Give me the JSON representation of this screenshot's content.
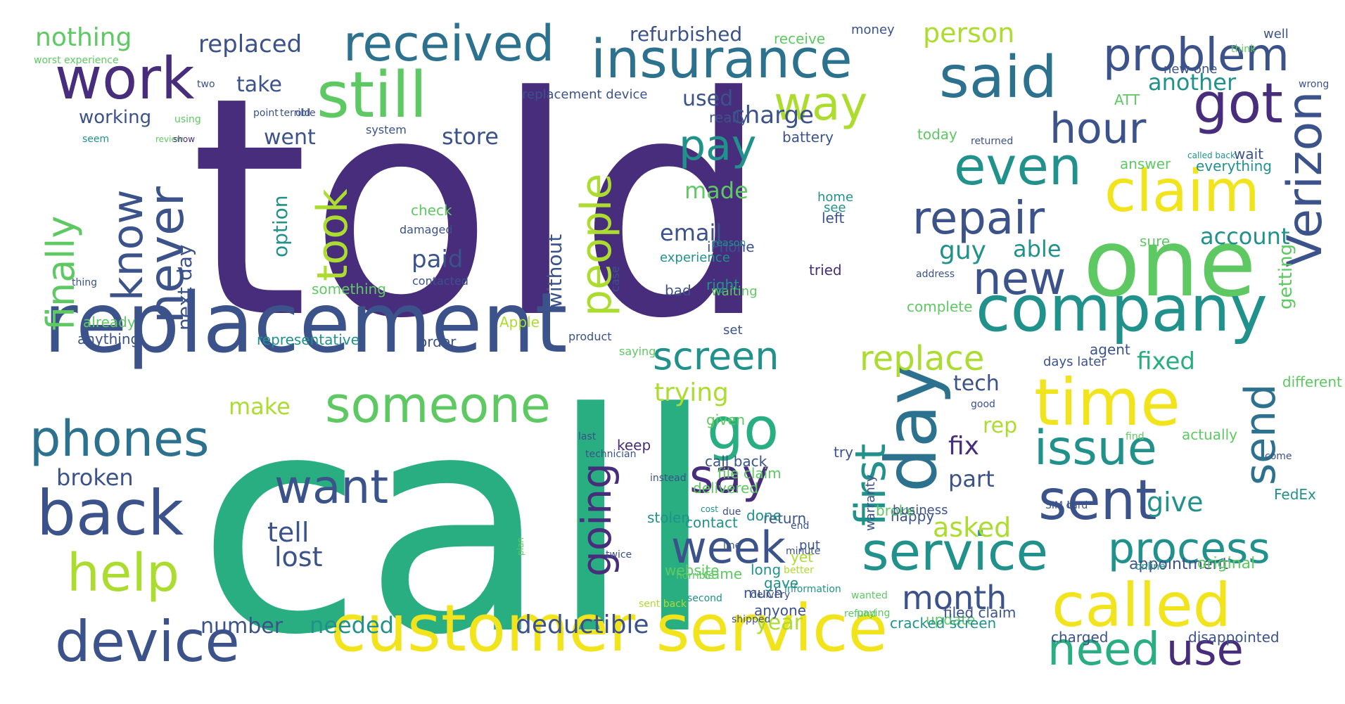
{
  "title": "",
  "palette": {
    "purple": "#472d7b",
    "indigo": "#3b528b",
    "blue": "#2c728e",
    "teal": "#21918c",
    "green": "#28ae80",
    "lime": "#5ec962",
    "yellowgreen": "#addc30",
    "yellow": "#f2e41c"
  },
  "words": [
    {
      "text": "told",
      "color": "purple"
    },
    {
      "text": "call",
      "color": "green"
    },
    {
      "text": "replacement",
      "color": "indigo"
    },
    {
      "text": "customer service",
      "color": "yellow"
    },
    {
      "text": "insurance",
      "color": "blue"
    },
    {
      "text": "received",
      "color": "blue"
    },
    {
      "text": "still",
      "color": "lime"
    },
    {
      "text": "work",
      "color": "purple"
    },
    {
      "text": "said",
      "color": "blue"
    },
    {
      "text": "problem",
      "color": "indigo"
    },
    {
      "text": "one",
      "color": "lime"
    },
    {
      "text": "company",
      "color": "teal"
    },
    {
      "text": "time",
      "color": "yellow"
    },
    {
      "text": "day",
      "color": "blue"
    },
    {
      "text": "claim",
      "color": "yellow"
    },
    {
      "text": "called",
      "color": "yellow"
    },
    {
      "text": "device",
      "color": "indigo"
    },
    {
      "text": "back",
      "color": "indigo"
    },
    {
      "text": "phones",
      "color": "blue"
    },
    {
      "text": "someone",
      "color": "lime"
    },
    {
      "text": "repair",
      "color": "indigo"
    },
    {
      "text": "service",
      "color": "teal"
    },
    {
      "text": "sent",
      "color": "indigo"
    },
    {
      "text": "got",
      "color": "purple"
    },
    {
      "text": "even",
      "color": "teal"
    },
    {
      "text": "need",
      "color": "green"
    },
    {
      "text": "use",
      "color": "purple"
    },
    {
      "text": "Verizon",
      "color": "indigo"
    },
    {
      "text": "issue",
      "color": "teal"
    },
    {
      "text": "process",
      "color": "teal"
    },
    {
      "text": "week",
      "color": "indigo"
    },
    {
      "text": "help",
      "color": "yellowgreen"
    },
    {
      "text": "want",
      "color": "indigo"
    },
    {
      "text": "go",
      "color": "green"
    },
    {
      "text": "say",
      "color": "purple"
    },
    {
      "text": "first",
      "color": "teal"
    },
    {
      "text": "going",
      "color": "purple"
    },
    {
      "text": "people",
      "color": "yellowgreen"
    },
    {
      "text": "screen",
      "color": "teal"
    },
    {
      "text": "way",
      "color": "yellowgreen"
    },
    {
      "text": "pay",
      "color": "teal"
    },
    {
      "text": "took",
      "color": "yellowgreen"
    },
    {
      "text": "never",
      "color": "indigo"
    },
    {
      "text": "know",
      "color": "indigo"
    },
    {
      "text": "finally",
      "color": "lime"
    },
    {
      "text": "new",
      "color": "indigo"
    },
    {
      "text": "hour",
      "color": "indigo"
    },
    {
      "text": "send",
      "color": "blue"
    },
    {
      "text": "replace",
      "color": "yellowgreen"
    },
    {
      "text": "deductible",
      "color": "indigo"
    },
    {
      "text": "month",
      "color": "indigo"
    },
    {
      "text": "nothing",
      "color": "lime"
    },
    {
      "text": "replaced",
      "color": "indigo"
    },
    {
      "text": "refurbished",
      "color": "indigo"
    },
    {
      "text": "receive",
      "color": "lime"
    },
    {
      "text": "money",
      "color": "indigo"
    },
    {
      "text": "person",
      "color": "yellowgreen"
    },
    {
      "text": "new one",
      "color": "indigo"
    },
    {
      "text": "think",
      "color": "lime"
    },
    {
      "text": "well",
      "color": "indigo"
    },
    {
      "text": "worst experience",
      "color": "lime"
    },
    {
      "text": "take",
      "color": "indigo"
    },
    {
      "text": "working",
      "color": "indigo"
    },
    {
      "text": "went",
      "color": "indigo"
    },
    {
      "text": "store",
      "color": "indigo"
    },
    {
      "text": "used",
      "color": "indigo"
    },
    {
      "text": "charge",
      "color": "indigo"
    },
    {
      "text": "another",
      "color": "teal"
    },
    {
      "text": "account",
      "color": "teal"
    },
    {
      "text": "made",
      "color": "lime"
    },
    {
      "text": "email",
      "color": "indigo"
    },
    {
      "text": "paid",
      "color": "indigo"
    },
    {
      "text": "option",
      "color": "teal"
    },
    {
      "text": "next day",
      "color": "indigo"
    },
    {
      "text": "without",
      "color": "indigo"
    },
    {
      "text": "guy",
      "color": "teal"
    },
    {
      "text": "able",
      "color": "teal"
    },
    {
      "text": "getting",
      "color": "lime"
    },
    {
      "text": "fixed",
      "color": "green"
    },
    {
      "text": "tech",
      "color": "indigo"
    },
    {
      "text": "rep",
      "color": "yellowgreen"
    },
    {
      "text": "fix",
      "color": "purple"
    },
    {
      "text": "part",
      "color": "indigo"
    },
    {
      "text": "give",
      "color": "teal"
    },
    {
      "text": "asked",
      "color": "yellowgreen"
    },
    {
      "text": "trying",
      "color": "yellowgreen"
    },
    {
      "text": "make",
      "color": "yellowgreen"
    },
    {
      "text": "broken",
      "color": "indigo"
    },
    {
      "text": "tell",
      "color": "indigo"
    },
    {
      "text": "lost",
      "color": "indigo"
    },
    {
      "text": "needed",
      "color": "teal"
    },
    {
      "text": "number",
      "color": "indigo"
    },
    {
      "text": "year",
      "color": "yellowgreen"
    },
    {
      "text": "anything",
      "color": "indigo"
    },
    {
      "text": "already",
      "color": "lime"
    },
    {
      "text": "representative",
      "color": "teal"
    },
    {
      "text": "order",
      "color": "indigo"
    },
    {
      "text": "Apple",
      "color": "yellowgreen"
    },
    {
      "text": "product",
      "color": "indigo"
    },
    {
      "text": "saying",
      "color": "lime"
    },
    {
      "text": "set",
      "color": "indigo"
    },
    {
      "text": "waiting",
      "color": "lime"
    },
    {
      "text": "right",
      "color": "teal"
    },
    {
      "text": "bad",
      "color": "indigo"
    },
    {
      "text": "tried",
      "color": "purple"
    },
    {
      "text": "experience",
      "color": "teal"
    },
    {
      "text": "iPhone",
      "color": "indigo"
    },
    {
      "text": "left",
      "color": "indigo"
    },
    {
      "text": "see",
      "color": "teal"
    },
    {
      "text": "home",
      "color": "teal"
    },
    {
      "text": "check",
      "color": "lime"
    },
    {
      "text": "damaged",
      "color": "indigo"
    },
    {
      "text": "contacted",
      "color": "indigo"
    },
    {
      "text": "something",
      "color": "lime"
    },
    {
      "text": "thing",
      "color": "indigo"
    },
    {
      "text": "reason",
      "color": "teal"
    },
    {
      "text": "case",
      "color": "indigo"
    },
    {
      "text": "replacement device",
      "color": "indigo"
    },
    {
      "text": "really",
      "color": "indigo"
    },
    {
      "text": "battery",
      "color": "indigo"
    },
    {
      "text": "system",
      "color": "indigo"
    },
    {
      "text": "review",
      "color": "lime"
    },
    {
      "text": "show",
      "color": "purple"
    },
    {
      "text": "seem",
      "color": "teal"
    },
    {
      "text": "using",
      "color": "lime"
    },
    {
      "text": "point",
      "color": "indigo"
    },
    {
      "text": "terrible",
      "color": "indigo"
    },
    {
      "text": "old",
      "color": "indigo"
    },
    {
      "text": "two",
      "color": "indigo"
    },
    {
      "text": "today",
      "color": "lime"
    },
    {
      "text": "ATT",
      "color": "lime"
    },
    {
      "text": "returned",
      "color": "indigo"
    },
    {
      "text": "called back",
      "color": "teal"
    },
    {
      "text": "answer",
      "color": "lime"
    },
    {
      "text": "wait",
      "color": "indigo"
    },
    {
      "text": "everything",
      "color": "teal"
    },
    {
      "text": "wrong",
      "color": "indigo"
    },
    {
      "text": "sure",
      "color": "lime"
    },
    {
      "text": "address",
      "color": "indigo"
    },
    {
      "text": "complete",
      "color": "lime"
    },
    {
      "text": "agent",
      "color": "indigo"
    },
    {
      "text": "days later",
      "color": "indigo"
    },
    {
      "text": "good",
      "color": "indigo"
    },
    {
      "text": "different",
      "color": "lime"
    },
    {
      "text": "find",
      "color": "lime"
    },
    {
      "text": "actually",
      "color": "lime"
    },
    {
      "text": "come",
      "color": "indigo"
    },
    {
      "text": "FedEx",
      "color": "teal"
    },
    {
      "text": "u",
      "color": "indigo"
    },
    {
      "text": "SIM card",
      "color": "indigo"
    },
    {
      "text": "appointment",
      "color": "indigo"
    },
    {
      "text": "online",
      "color": "teal"
    },
    {
      "text": "original",
      "color": "lime"
    },
    {
      "text": "charged",
      "color": "indigo"
    },
    {
      "text": "disappointed",
      "color": "indigo"
    },
    {
      "text": "update",
      "color": "lime"
    },
    {
      "text": "filed claim",
      "color": "indigo"
    },
    {
      "text": "cracked screen",
      "color": "teal"
    },
    {
      "text": "warranty",
      "color": "indigo"
    },
    {
      "text": "happy",
      "color": "indigo"
    },
    {
      "text": "broke",
      "color": "lime"
    },
    {
      "text": "business",
      "color": "indigo"
    },
    {
      "text": "try",
      "color": "indigo"
    },
    {
      "text": "better",
      "color": "yellowgreen"
    },
    {
      "text": "yet",
      "color": "yellowgreen"
    },
    {
      "text": "return",
      "color": "indigo"
    },
    {
      "text": "long",
      "color": "teal"
    },
    {
      "text": "anyone",
      "color": "indigo"
    },
    {
      "text": "shipped",
      "color": "indigo"
    },
    {
      "text": "information",
      "color": "teal"
    },
    {
      "text": "paying",
      "color": "lime"
    },
    {
      "text": "much",
      "color": "indigo"
    },
    {
      "text": "sent back",
      "color": "yellowgreen"
    },
    {
      "text": "twice",
      "color": "indigo"
    },
    {
      "text": "last",
      "color": "indigo"
    },
    {
      "text": "technician",
      "color": "indigo"
    },
    {
      "text": "delivered",
      "color": "lime"
    },
    {
      "text": "given",
      "color": "lime"
    },
    {
      "text": "call back",
      "color": "indigo"
    },
    {
      "text": "keep",
      "color": "purple"
    },
    {
      "text": "stolen",
      "color": "teal"
    },
    {
      "text": "contact",
      "color": "teal"
    },
    {
      "text": "plan",
      "color": "lime"
    },
    {
      "text": "website",
      "color": "lime"
    },
    {
      "text": "put",
      "color": "indigo"
    },
    {
      "text": "gave",
      "color": "teal"
    },
    {
      "text": "done",
      "color": "teal"
    },
    {
      "text": "came",
      "color": "lime"
    },
    {
      "text": "refund",
      "color": "lime"
    },
    {
      "text": "wanted",
      "color": "lime"
    },
    {
      "text": "end",
      "color": "indigo"
    },
    {
      "text": "minute",
      "color": "indigo"
    },
    {
      "text": "line",
      "color": "indigo"
    },
    {
      "text": "file claim",
      "color": "lime"
    },
    {
      "text": "delivery",
      "color": "indigo"
    },
    {
      "text": "cost",
      "color": "teal"
    },
    {
      "text": "instead",
      "color": "indigo"
    },
    {
      "text": "horrible",
      "color": "lime"
    },
    {
      "text": "second",
      "color": "teal"
    },
    {
      "text": "due",
      "color": "indigo"
    }
  ]
}
